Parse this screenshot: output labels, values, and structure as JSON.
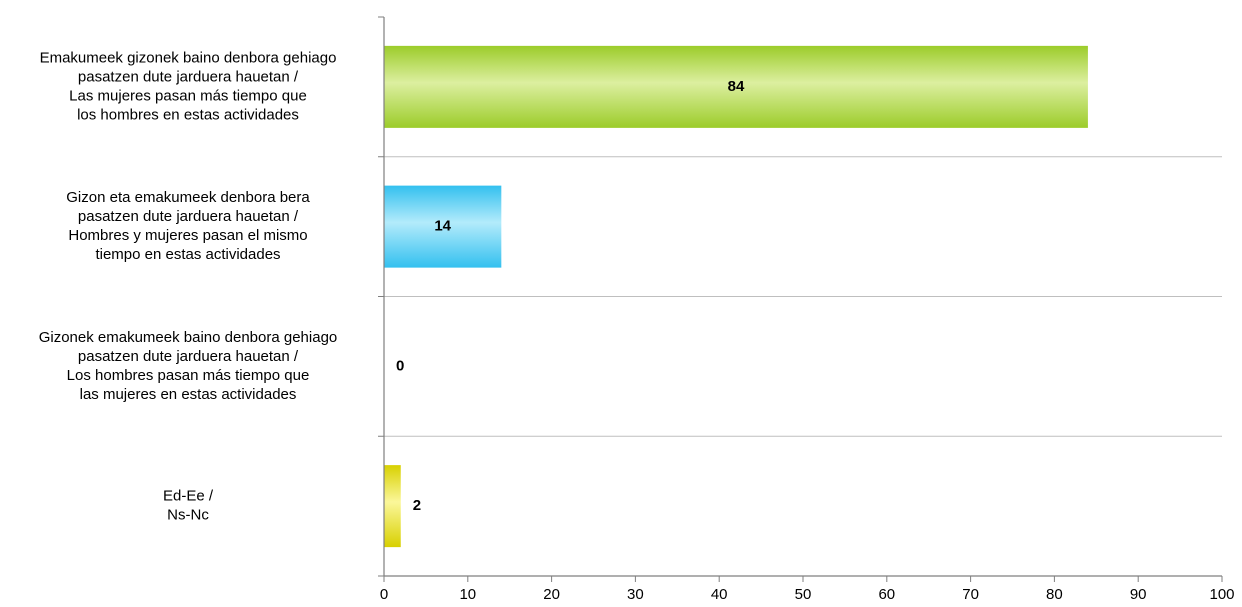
{
  "chart_data": {
    "type": "bar",
    "orientation": "horizontal",
    "title": "",
    "xlabel": "",
    "ylabel": "",
    "xlim": [
      0,
      100
    ],
    "x_ticks": [
      "0",
      "10",
      "20",
      "30",
      "40",
      "50",
      "60",
      "70",
      "80",
      "90",
      "100"
    ],
    "grid": "horizontal separators between categories",
    "legend": "none",
    "categories": [
      {
        "label_lines": [
          "Emakumeek gizonek baino denbora gehiago",
          "pasatzen dute jarduera hauetan /",
          "Las mujeres pasan más tiempo que",
          "los hombres en estas actividades"
        ],
        "value": 84,
        "value_label": "84",
        "color": "#9ccc2a",
        "color_light": "#dcefa0"
      },
      {
        "label_lines": [
          "Gizon eta emakumeek denbora bera",
          "pasatzen dute jarduera hauetan /",
          "Hombres y mujeres pasan el mismo",
          "tiempo en estas actividades"
        ],
        "value": 14,
        "value_label": "14",
        "color": "#33c0ef",
        "color_light": "#b3ebfb"
      },
      {
        "label_lines": [
          "Gizonek emakumeek baino denbora gehiago",
          "pasatzen dute jarduera hauetan /",
          "Los hombres pasan más tiempo que",
          "las mujeres en estas actividades"
        ],
        "value": 0,
        "value_label": "0",
        "color": "#d9534f",
        "color_light": "#f2b8b6"
      },
      {
        "label_lines": [
          "Ed-Ee /",
          "Ns-Nc"
        ],
        "value": 2,
        "value_label": "2",
        "color": "#d8d000",
        "color_light": "#fbf79a"
      }
    ]
  }
}
